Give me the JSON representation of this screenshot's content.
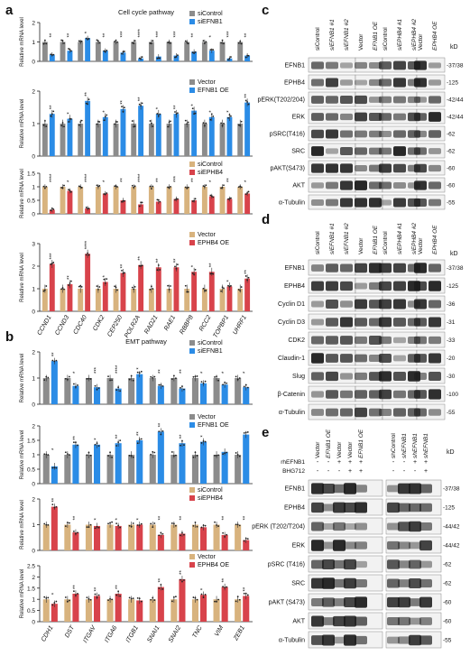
{
  "panel_labels": {
    "a": "a",
    "b": "b",
    "c": "c",
    "d": "d",
    "e": "e"
  },
  "colors": {
    "grey": "#8c8c8c",
    "blue": "#2b8ce6",
    "tan": "#d8b37e",
    "red": "#d8434b",
    "band_bg": "#f2f2f2",
    "band": "#1a1a1a"
  },
  "chart_data": [
    {
      "type": "bar",
      "panel": "a",
      "title": "Cell cycle pathway",
      "ylabel": "Relative mRNA level",
      "ylim": [
        0,
        2
      ],
      "yticks": [
        0,
        1,
        2
      ],
      "categories": [
        "CCND1",
        "CCND3",
        "CDC40",
        "CDK2",
        "CEP250",
        "POLR2A",
        "RAD21",
        "RAE1",
        "RBBP8",
        "RCC2",
        "TOPBP1",
        "UHRF1"
      ],
      "series": [
        {
          "name": "siControl",
          "color": "grey",
          "values": [
            1,
            1,
            1,
            1,
            1,
            1,
            1,
            1,
            1,
            1,
            1,
            1
          ]
        },
        {
          "name": "siEFNB1",
          "color": "blue",
          "values": [
            0.35,
            0.55,
            1.2,
            0.55,
            0.45,
            0.15,
            0.25,
            0.3,
            0.5,
            0.55,
            0.15,
            0.3
          ]
        }
      ],
      "stars": [
        "**",
        "**",
        "*",
        "**",
        "***",
        "****",
        "***",
        "***",
        "**",
        "*",
        "***",
        "**"
      ]
    },
    {
      "type": "bar",
      "panel": "a",
      "title": "",
      "ylabel": "Relative mRNA level",
      "ylim": [
        0,
        2
      ],
      "yticks": [
        0,
        1,
        2
      ],
      "categories": [
        "CCND1",
        "CCND3",
        "CDC40",
        "CDK2",
        "CEP250",
        "POLR2A",
        "RAD21",
        "RAE1",
        "RBBP8",
        "RCC2",
        "TOPBP1",
        "UHRF1"
      ],
      "series": [
        {
          "name": "Vector",
          "color": "grey",
          "values": [
            1,
            1,
            1,
            1,
            1,
            1,
            1,
            1,
            1,
            1,
            1,
            1
          ]
        },
        {
          "name": "EFNB1 OE",
          "color": "blue",
          "values": [
            1.3,
            1.15,
            1.7,
            1.2,
            1.45,
            1.55,
            1.3,
            1.3,
            1.4,
            1.2,
            1.2,
            1.65
          ]
        }
      ],
      "stars": [
        "**",
        "*",
        "**",
        "*",
        "**",
        "**",
        "*",
        "**",
        "*",
        "*",
        "*",
        "**"
      ]
    },
    {
      "type": "bar",
      "panel": "a",
      "title": "",
      "ylabel": "Relative mRNA level",
      "ylim": [
        0,
        1.5
      ],
      "yticks": [
        0,
        0.5,
        1,
        1.5
      ],
      "categories": [
        "CCND1",
        "CCND3",
        "CDC40",
        "CDK2",
        "CEP250",
        "POLR2A",
        "RAD21",
        "RAE1",
        "RBBP8",
        "RCC2",
        "TOPBP1",
        "UHRF1"
      ],
      "series": [
        {
          "name": "siControl",
          "color": "tan",
          "values": [
            1,
            1,
            1,
            1,
            1,
            1,
            1,
            1,
            1,
            1,
            1,
            1
          ]
        },
        {
          "name": "siEPHB4",
          "color": "red",
          "values": [
            0.15,
            0.85,
            0.2,
            0.75,
            0.5,
            0.35,
            0.45,
            0.55,
            0.5,
            0.65,
            0.55,
            0.75
          ]
        }
      ],
      "stars": [
        "****",
        "*",
        "****",
        "*",
        "**",
        "****",
        "**",
        "***",
        "**",
        "*",
        "**",
        "*"
      ]
    },
    {
      "type": "bar",
      "panel": "a",
      "title": "",
      "ylabel": "Relative mRNA level",
      "ylim": [
        0,
        3
      ],
      "yticks": [
        0,
        1,
        2,
        3
      ],
      "categories": [
        "CCND1",
        "CCND3",
        "CDC40",
        "CDK2",
        "CEP250",
        "POLR2A",
        "RAD21",
        "RAE1",
        "RBBP8",
        "RCC2",
        "TOPBP1",
        "UHRF1"
      ],
      "series": [
        {
          "name": "Vector",
          "color": "tan",
          "values": [
            1,
            1,
            1,
            1,
            1,
            1,
            1,
            1,
            1,
            1,
            1,
            1
          ]
        },
        {
          "name": "EPHB4 OE",
          "color": "red",
          "values": [
            2.1,
            1.2,
            2.55,
            1.3,
            1.7,
            2.05,
            1.95,
            1.95,
            1.75,
            1.75,
            1.1,
            1.45
          ]
        }
      ],
      "stars": [
        "***",
        "**",
        "****",
        "*",
        "**",
        "**",
        "**",
        "**",
        "*",
        "**",
        "*",
        "**"
      ]
    },
    {
      "type": "bar",
      "panel": "b",
      "title": "EMT pathway",
      "ylabel": "Relative mRNA level",
      "ylim": [
        0,
        2
      ],
      "yticks": [
        0,
        1,
        2
      ],
      "categories": [
        "CDH1",
        "DST",
        "ITGAV",
        "ITGA6",
        "ITGB1",
        "SNAI1",
        "SNAI2",
        "TNC",
        "VIM",
        "ZEB1"
      ],
      "series": [
        {
          "name": "siControl",
          "color": "grey",
          "values": [
            1,
            1,
            1,
            1,
            1,
            1,
            1,
            1,
            1,
            1
          ]
        },
        {
          "name": "siEFNB1",
          "color": "blue",
          "values": [
            1.65,
            0.7,
            0.65,
            0.6,
            1.15,
            0.7,
            0.6,
            0.8,
            0.75,
            0.65
          ]
        }
      ],
      "stars": [
        "**",
        "*",
        "***",
        "****",
        "*",
        "**",
        "**",
        "*",
        "*",
        "*"
      ]
    },
    {
      "type": "bar",
      "panel": "b",
      "title": "",
      "ylabel": "Relative mRNA level",
      "ylim": [
        0,
        2
      ],
      "yticks": [
        0,
        0.5,
        1,
        1.5,
        2
      ],
      "categories": [
        "CDH1",
        "DST",
        "ITGAV",
        "ITGA6",
        "ITGB1",
        "SNAI1",
        "SNAI2",
        "TNC",
        "VIM",
        "ZEB1"
      ],
      "series": [
        {
          "name": "Vector",
          "color": "grey",
          "values": [
            1,
            1,
            1,
            1,
            1,
            1,
            1,
            1,
            1,
            1
          ]
        },
        {
          "name": "EFNB1 OE",
          "color": "blue",
          "values": [
            0.6,
            1.35,
            1.35,
            1.4,
            1.5,
            1.8,
            1.4,
            1.45,
            1.1,
            1.7
          ]
        }
      ],
      "stars": [
        "*",
        "**",
        "*",
        "**",
        "**",
        "**",
        "**",
        "*",
        "",
        ""
      ]
    },
    {
      "type": "bar",
      "panel": "b",
      "title": "",
      "ylabel": "Relative mRNA level",
      "ylim": [
        0,
        2
      ],
      "yticks": [
        0,
        1,
        2
      ],
      "categories": [
        "CDH1",
        "DST",
        "ITGAV",
        "ITGA6",
        "ITGB1",
        "SNAI1",
        "SNAI2",
        "TNC",
        "VIM",
        "ZEB1"
      ],
      "series": [
        {
          "name": "siControl",
          "color": "tan",
          "values": [
            1,
            1,
            1,
            1,
            1,
            1,
            1,
            1,
            1,
            1
          ]
        },
        {
          "name": "siEPHB4",
          "color": "red",
          "values": [
            1.7,
            0.7,
            0.95,
            0.95,
            1,
            0.6,
            0.65,
            0.9,
            0.6,
            0.4
          ]
        }
      ],
      "stars": [
        "**",
        "**",
        "*",
        "*",
        "*",
        "**",
        "**",
        "",
        "**",
        "**"
      ]
    },
    {
      "type": "bar",
      "panel": "b",
      "title": "",
      "ylabel": "Relative mRNA level",
      "ylim": [
        0,
        2.5
      ],
      "yticks": [
        0,
        0.5,
        1,
        1.5,
        2,
        2.5
      ],
      "categories": [
        "CDH1",
        "DST",
        "ITGAV",
        "ITGA6",
        "ITGB1",
        "SNAI1",
        "SNAI2",
        "TNC",
        "VIM",
        "ZEB1"
      ],
      "series": [
        {
          "name": "Vector",
          "color": "tan",
          "values": [
            1,
            1,
            1,
            1,
            1,
            1,
            1,
            1,
            1,
            1
          ]
        },
        {
          "name": "EPHB4 OE",
          "color": "red",
          "values": [
            0.8,
            1.25,
            1.15,
            1.25,
            0.95,
            1.55,
            1.9,
            1.2,
            1.55,
            1.15
          ]
        }
      ],
      "stars": [
        "*",
        "**",
        "**",
        "**",
        "",
        "**",
        "**",
        "*",
        "**",
        "**"
      ]
    }
  ],
  "blots": {
    "c": {
      "header_groups": [
        [
          "siControl",
          "siEFNB1 #1",
          "siEFNB1 #2"
        ],
        [
          "Vector",
          "EFNB1 OE"
        ],
        [
          "siControl",
          "siEPHB4 #1",
          "siEPHB4 #2"
        ],
        [
          "Vector",
          "EPHB4 OE"
        ]
      ],
      "kd_label": "kD",
      "rows": [
        {
          "name": "EFNB1",
          "size": "37/38"
        },
        {
          "name": "EPHB4",
          "size": "125"
        },
        {
          "name": "pERK(T202/204)",
          "size": "42/44"
        },
        {
          "name": "ERK",
          "size": "42/44"
        },
        {
          "name": "pSRC(T416)",
          "size": "62"
        },
        {
          "name": "SRC",
          "size": "62"
        },
        {
          "name": "pAKT(S473)",
          "size": "60"
        },
        {
          "name": "AKT",
          "size": "60"
        },
        {
          "name": "α-Tubulin",
          "size": "55"
        }
      ]
    },
    "d": {
      "header_groups": [
        [
          "siControl",
          "siEFNB1 #1",
          "siEFNB1 #2"
        ],
        [
          "Vector",
          "EFNB1 OE"
        ],
        [
          "siControl",
          "siEPHB4 #1",
          "siEPHB4 #2"
        ],
        [
          "Vector",
          "EPHB4 OE"
        ]
      ],
      "kd_label": "kD",
      "rows": [
        {
          "name": "EFNB1",
          "size": "37/38"
        },
        {
          "name": "EPHB4",
          "size": "125"
        },
        {
          "name": "Cyclin D1",
          "size": "36"
        },
        {
          "name": "Cyclin D3",
          "size": "31"
        },
        {
          "name": "CDK2",
          "size": "33"
        },
        {
          "name": "Claudin-1",
          "size": "20"
        },
        {
          "name": "Slug",
          "size": "30"
        },
        {
          "name": "β-Catenin",
          "size": "100"
        },
        {
          "name": "α-Tubulin",
          "size": "55"
        }
      ]
    },
    "e": {
      "header_groups": [
        [
          "Vector",
          "EFNB1 OE",
          "Vector",
          "Vector",
          "EFNB1 OE"
        ],
        [
          "shControl",
          "shEFNB1",
          "shEFNB1",
          "shEFNB1"
        ]
      ],
      "treatments": [
        {
          "name": "rhEFNB1",
          "left": [
            "-",
            "-",
            "+",
            "+",
            "+"
          ],
          "right": [
            "-",
            "-",
            "+",
            "+"
          ]
        },
        {
          "name": "BHG712",
          "left": [
            "-",
            "-",
            "-",
            "+",
            "+"
          ],
          "right": [
            "-",
            "-",
            "-",
            "+"
          ]
        }
      ],
      "kd_label": "kD",
      "rows": [
        {
          "name": "EFNB1",
          "size": "37/38"
        },
        {
          "name": "EPHB4",
          "size": "125"
        },
        {
          "name": "pERK (T202/T204)",
          "size": "44/42"
        },
        {
          "name": "ERK",
          "size": "44/42"
        },
        {
          "name": "pSRC (T416)",
          "size": "62"
        },
        {
          "name": "SRC",
          "size": "62"
        },
        {
          "name": "pAKT (S473)",
          "size": "60"
        },
        {
          "name": "AKT",
          "size": "60"
        },
        {
          "name": "α-Tubulin",
          "size": "55"
        }
      ]
    }
  }
}
